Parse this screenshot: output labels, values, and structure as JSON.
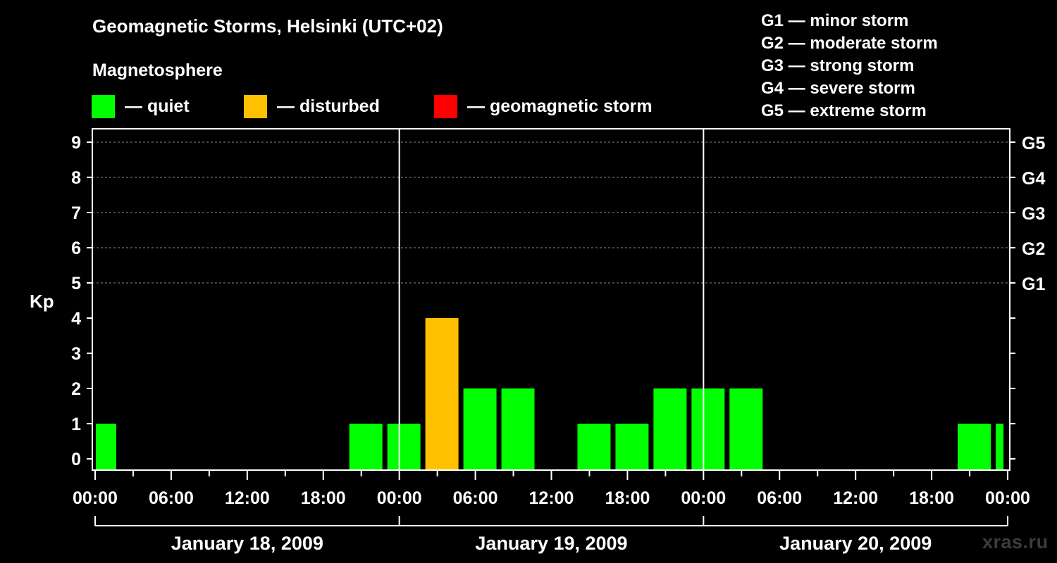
{
  "header": {
    "title": "Geomagnetic Storms, Helsinki (UTC+02)",
    "magnetosphere_label": "Magnetosphere"
  },
  "legend": [
    {
      "color": "#00ff00",
      "label": "— quiet"
    },
    {
      "color": "#ffc000",
      "label": "— disturbed"
    },
    {
      "color": "#ff0000",
      "label": "— geomagnetic storm"
    }
  ],
  "storm_scale": [
    "G1 — minor storm",
    "G2 — moderate storm",
    "G3 — strong storm",
    "G4 — severe storm",
    "G5 — extreme storm"
  ],
  "watermark": "xras.ru",
  "chart_data": {
    "type": "bar",
    "title": "Geomagnetic Storms, Helsinki (UTC+02)",
    "ylabel": "Kp",
    "ylim": [
      0,
      9
    ],
    "yticks": [
      "0",
      "1",
      "2",
      "3",
      "4",
      "5",
      "6",
      "7",
      "8",
      "9"
    ],
    "right_ticks": [
      {
        "kp": 5,
        "label": "G1"
      },
      {
        "kp": 6,
        "label": "G2"
      },
      {
        "kp": 7,
        "label": "G3"
      },
      {
        "kp": 8,
        "label": "G4"
      },
      {
        "kp": 9,
        "label": "G5"
      }
    ],
    "grid": true,
    "xlim_hours": [
      0,
      72
    ],
    "xticks": [
      "00:00",
      "06:00",
      "12:00",
      "18:00",
      "00:00",
      "06:00",
      "12:00",
      "18:00",
      "00:00",
      "06:00",
      "12:00",
      "18:00",
      "00:00"
    ],
    "days": [
      "January 18, 2009",
      "January 19, 2009",
      "January 20, 2009"
    ],
    "bars": [
      {
        "start": 0,
        "end": 2,
        "kp": 1,
        "level": "quiet"
      },
      {
        "start": 20,
        "end": 23,
        "kp": 1,
        "level": "quiet"
      },
      {
        "start": 23,
        "end": 26,
        "kp": 1,
        "level": "quiet"
      },
      {
        "start": 26,
        "end": 29,
        "kp": 4,
        "level": "disturbed"
      },
      {
        "start": 29,
        "end": 32,
        "kp": 2,
        "level": "quiet"
      },
      {
        "start": 32,
        "end": 35,
        "kp": 2,
        "level": "quiet"
      },
      {
        "start": 38,
        "end": 41,
        "kp": 1,
        "level": "quiet"
      },
      {
        "start": 41,
        "end": 44,
        "kp": 1,
        "level": "quiet"
      },
      {
        "start": 44,
        "end": 47,
        "kp": 2,
        "level": "quiet"
      },
      {
        "start": 47,
        "end": 50,
        "kp": 2,
        "level": "quiet"
      },
      {
        "start": 50,
        "end": 53,
        "kp": 2,
        "level": "quiet"
      },
      {
        "start": 68,
        "end": 71,
        "kp": 1,
        "level": "quiet"
      },
      {
        "start": 71,
        "end": 72,
        "kp": 1,
        "level": "quiet"
      }
    ],
    "colors": {
      "quiet": "#00ff00",
      "disturbed": "#ffc000",
      "storm": "#ff0000"
    }
  }
}
